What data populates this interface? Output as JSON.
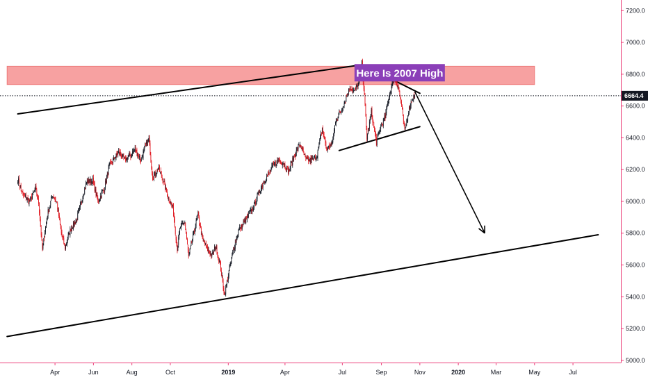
{
  "chart_data": {
    "type": "line",
    "title": "",
    "xlabel": "",
    "ylabel": "",
    "ylim": [
      5000,
      7300
    ],
    "grid": false,
    "y_ticks": [
      "5000.0",
      "5200.0",
      "5400.0",
      "5600.0",
      "5800.0",
      "6000.0",
      "6200.0",
      "6400.0",
      "6600.0",
      "6800.0",
      "7000.0",
      "7200.0"
    ],
    "x_ticks": [
      {
        "label": "Apr",
        "date": "2018-04-01",
        "bold": false
      },
      {
        "label": "Jun",
        "date": "2018-06-01",
        "bold": false
      },
      {
        "label": "Aug",
        "date": "2018-08-01",
        "bold": false
      },
      {
        "label": "Oct",
        "date": "2018-10-01",
        "bold": false
      },
      {
        "label": "2019",
        "date": "2019-01-01",
        "bold": true
      },
      {
        "label": "Apr",
        "date": "2019-04-01",
        "bold": false
      },
      {
        "label": "Jul",
        "date": "2019-07-01",
        "bold": false
      },
      {
        "label": "Sep",
        "date": "2019-09-01",
        "bold": false
      },
      {
        "label": "Nov",
        "date": "2019-11-01",
        "bold": false
      },
      {
        "label": "2020",
        "date": "2020-01-01",
        "bold": true
      },
      {
        "label": "Mar",
        "date": "2020-03-01",
        "bold": false
      },
      {
        "label": "May",
        "date": "2020-05-01",
        "bold": false
      },
      {
        "label": "Jul",
        "date": "2020-07-01",
        "bold": false
      }
    ],
    "series": [
      {
        "values": [
          [
            "2018-02-01",
            6140
          ],
          [
            "2018-02-09",
            6040
          ],
          [
            "2018-02-20",
            6000
          ],
          [
            "2018-03-01",
            6080
          ],
          [
            "2018-03-06",
            5990
          ],
          [
            "2018-03-12",
            5700
          ],
          [
            "2018-03-20",
            5920
          ],
          [
            "2018-03-28",
            6040
          ],
          [
            "2018-04-04",
            5990
          ],
          [
            "2018-04-11",
            5800
          ],
          [
            "2018-04-17",
            5710
          ],
          [
            "2018-04-25",
            5820
          ],
          [
            "2018-05-05",
            5880
          ],
          [
            "2018-05-14",
            6020
          ],
          [
            "2018-05-21",
            6120
          ],
          [
            "2018-05-31",
            6130
          ],
          [
            "2018-06-08",
            6000
          ],
          [
            "2018-06-18",
            6080
          ],
          [
            "2018-06-26",
            6220
          ],
          [
            "2018-07-04",
            6270
          ],
          [
            "2018-07-11",
            6310
          ],
          [
            "2018-07-20",
            6260
          ],
          [
            "2018-07-30",
            6290
          ],
          [
            "2018-08-06",
            6330
          ],
          [
            "2018-08-15",
            6260
          ],
          [
            "2018-08-23",
            6350
          ],
          [
            "2018-08-28",
            6390
          ],
          [
            "2018-09-03",
            6150
          ],
          [
            "2018-09-12",
            6210
          ],
          [
            "2018-09-20",
            6130
          ],
          [
            "2018-09-27",
            6030
          ],
          [
            "2018-10-05",
            5960
          ],
          [
            "2018-10-12",
            5700
          ],
          [
            "2018-10-17",
            5840
          ],
          [
            "2018-10-24",
            5870
          ],
          [
            "2018-10-30",
            5650
          ],
          [
            "2018-11-06",
            5780
          ],
          [
            "2018-11-14",
            5920
          ],
          [
            "2018-11-21",
            5760
          ],
          [
            "2018-11-28",
            5700
          ],
          [
            "2018-12-06",
            5660
          ],
          [
            "2018-12-12",
            5720
          ],
          [
            "2018-12-19",
            5600
          ],
          [
            "2018-12-26",
            5410
          ],
          [
            "2019-01-03",
            5580
          ],
          [
            "2019-01-10",
            5710
          ],
          [
            "2019-01-18",
            5820
          ],
          [
            "2019-01-25",
            5860
          ],
          [
            "2019-02-01",
            5900
          ],
          [
            "2019-02-09",
            5960
          ],
          [
            "2019-02-18",
            6050
          ],
          [
            "2019-02-27",
            6130
          ],
          [
            "2019-03-07",
            6180
          ],
          [
            "2019-03-14",
            6230
          ],
          [
            "2019-03-22",
            6260
          ],
          [
            "2019-03-30",
            6240
          ],
          [
            "2019-04-07",
            6190
          ],
          [
            "2019-04-16",
            6290
          ],
          [
            "2019-04-25",
            6360
          ],
          [
            "2019-05-04",
            6260
          ],
          [
            "2019-05-14",
            6260
          ],
          [
            "2019-05-22",
            6290
          ],
          [
            "2019-05-30",
            6460
          ],
          [
            "2019-06-06",
            6330
          ],
          [
            "2019-06-14",
            6350
          ],
          [
            "2019-06-21",
            6520
          ],
          [
            "2019-06-28",
            6560
          ],
          [
            "2019-07-06",
            6640
          ],
          [
            "2019-07-13",
            6720
          ],
          [
            "2019-07-20",
            6690
          ],
          [
            "2019-07-28",
            6760
          ],
          [
            "2019-08-01",
            6870
          ],
          [
            "2019-08-05",
            6660
          ],
          [
            "2019-08-09",
            6400
          ],
          [
            "2019-08-16",
            6560
          ],
          [
            "2019-08-24",
            6370
          ],
          [
            "2019-08-30",
            6460
          ],
          [
            "2019-09-07",
            6530
          ],
          [
            "2019-09-14",
            6680
          ],
          [
            "2019-09-21",
            6770
          ],
          [
            "2019-09-28",
            6720
          ],
          [
            "2019-10-03",
            6600
          ],
          [
            "2019-10-08",
            6440
          ],
          [
            "2019-10-14",
            6570
          ],
          [
            "2019-10-20",
            6650
          ],
          [
            "2019-10-24",
            6664.4
          ]
        ]
      }
    ],
    "last_price": {
      "value": 6664.4,
      "label": "6664.4"
    },
    "resistance_zone": {
      "y_from": 6735,
      "y_to": 6850,
      "date_from": "2018-01-15",
      "date_to": "2020-05-01",
      "color": "#f7a1a1"
    },
    "trendlines": [
      {
        "from": [
          "2018-02-01",
          6550
        ],
        "to": [
          "2019-08-02",
          6860
        ]
      },
      {
        "from": [
          "2019-08-02",
          6860
        ],
        "to": [
          "2019-11-01",
          6680
        ]
      },
      {
        "from": [
          "2019-06-26",
          6320
        ],
        "to": [
          "2019-11-01",
          6470
        ]
      },
      {
        "from": [
          "2018-01-15",
          5150
        ],
        "to": [
          "2020-08-10",
          5790
        ]
      }
    ],
    "arrow": {
      "from": [
        "2019-10-24",
        6690
      ],
      "to": [
        "2020-02-12",
        5800
      ]
    },
    "annotations": [
      {
        "text": "Here Is 2007 High",
        "date": "2019-09-30",
        "y": 6807,
        "color": "#8b3fb8"
      }
    ],
    "colors": {
      "up": "#131722",
      "down": "#e0161e",
      "axis": "#ec407a",
      "text": "#131722"
    }
  }
}
